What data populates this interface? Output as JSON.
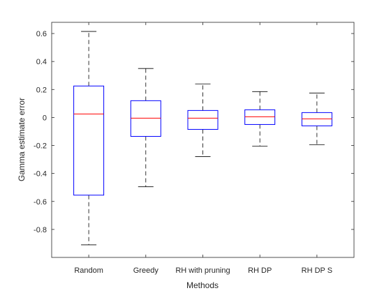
{
  "chart_data": {
    "type": "box",
    "xlabel": "Methods",
    "ylabel": "Gamma estimate error",
    "ylim": [
      -1.0,
      0.68
    ],
    "yticks": [
      -0.8,
      -0.6,
      -0.4,
      -0.2,
      0,
      0.2,
      0.4,
      0.6
    ],
    "ytick_labels": [
      "-0.8",
      "-0.6",
      "-0.4",
      "-0.2",
      "0",
      "0.2",
      "0.4",
      "0.6"
    ],
    "grid": false,
    "categories": [
      "Random",
      "Greedy",
      "RH with pruning",
      "RH DP",
      "RH DP S"
    ],
    "boxes": [
      {
        "category": "Random",
        "whisker_low": -0.91,
        "q1": -0.555,
        "median": 0.025,
        "q3": 0.225,
        "whisker_high": 0.615
      },
      {
        "category": "Greedy",
        "whisker_low": -0.495,
        "q1": -0.135,
        "median": -0.005,
        "q3": 0.12,
        "whisker_high": 0.35
      },
      {
        "category": "RH with pruning",
        "whisker_low": -0.28,
        "q1": -0.085,
        "median": -0.005,
        "q3": 0.05,
        "whisker_high": 0.24
      },
      {
        "category": "RH DP",
        "whisker_low": -0.205,
        "q1": -0.05,
        "median": 0.005,
        "q3": 0.055,
        "whisker_high": 0.185
      },
      {
        "category": "RH DP S",
        "whisker_low": -0.195,
        "q1": -0.06,
        "median": -0.01,
        "q3": 0.035,
        "whisker_high": 0.175
      }
    ],
    "colors": {
      "box": "#0000ff",
      "median": "#ff0000",
      "whisker": "#000000",
      "axis": "#262626"
    }
  }
}
